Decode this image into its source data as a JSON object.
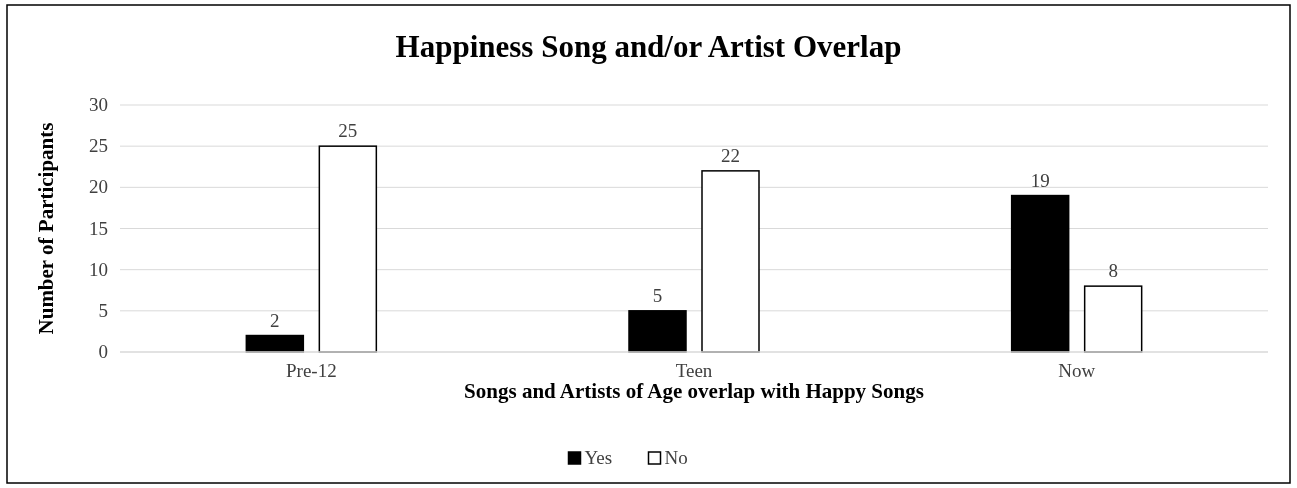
{
  "chart_data": {
    "type": "bar",
    "title": "Happiness Song and/or Artist Overlap",
    "xlabel": "Songs and Artists of Age overlap with Happy Songs",
    "ylabel": "Number of Participants",
    "categories": [
      "Pre-12",
      "Teen",
      "Now"
    ],
    "series": [
      {
        "name": "Yes",
        "color": "#000000",
        "values": [
          2,
          5,
          19
        ]
      },
      {
        "name": "No",
        "color": "#ffffff",
        "values": [
          25,
          22,
          8
        ]
      }
    ],
    "ylim": [
      0,
      30
    ],
    "yticks": [
      0,
      5,
      10,
      15,
      20,
      25,
      30
    ],
    "grid": "y",
    "legend": "bottom",
    "data_labels": true
  }
}
